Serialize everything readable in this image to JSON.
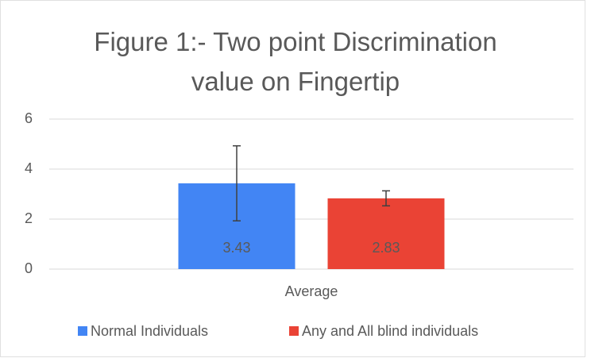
{
  "chart_data": {
    "type": "bar",
    "title": "Figure 1:- Two point Discrimination value on Fingertip",
    "categories": [
      "Average"
    ],
    "series": [
      {
        "name": "Normal Individuals",
        "color": "#4285f4",
        "values": [
          3.43
        ],
        "errors": [
          1.5
        ]
      },
      {
        "name": "Any and All blind individuals",
        "color": "#ea4335",
        "values": [
          2.83
        ],
        "errors": [
          0.3
        ]
      }
    ],
    "ylim": [
      0,
      6
    ],
    "yticks": [
      0,
      2,
      4,
      6
    ],
    "grid": true,
    "legend": "bottom"
  }
}
